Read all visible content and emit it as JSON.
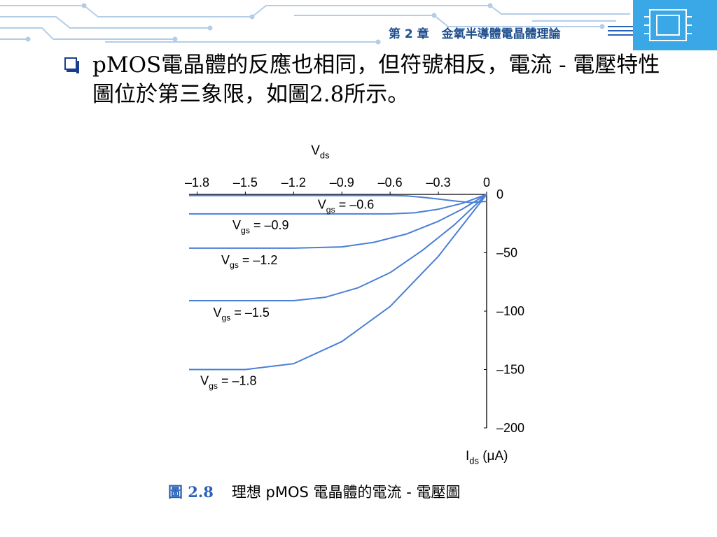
{
  "header": {
    "chapter": "第 2 章",
    "title": "金氧半導體電晶體理論"
  },
  "bullet": {
    "text": "pMOS電晶體的反應也相同，但符號相反，電流 - 電壓特性圖位於第三象限，如圖2.8所示。"
  },
  "caption": {
    "number": "圖 2.8",
    "title": "理想 pMOS 電晶體的電流 - 電壓圖"
  },
  "colors": {
    "curve": "#4a7fd6",
    "header_lines": "#b3cde8",
    "accent": "#1f4f8f",
    "caption_number": "#2a62b8"
  },
  "chart_data": {
    "type": "line",
    "x_axis": {
      "label": "V",
      "label_sub": "ds",
      "ticks": [
        -1.8,
        -1.5,
        -1.2,
        -0.9,
        -0.6,
        -0.3,
        0
      ],
      "tick_labels": [
        "–1.8",
        "–1.5",
        "–1.2",
        "–0.9",
        "–0.6",
        "–0.3",
        "0"
      ],
      "range": [
        -1.85,
        0
      ]
    },
    "y_axis": {
      "label": "I",
      "label_sub": "ds",
      "unit": " (μA)",
      "ticks": [
        0,
        -50,
        -100,
        -150,
        -200
      ],
      "tick_labels": [
        "0",
        "–50",
        "–100",
        "–150",
        "–200"
      ],
      "range": [
        -200,
        0
      ]
    },
    "grid": false,
    "series": [
      {
        "name": "Vgs = –0.6",
        "label_main": "V",
        "label_sub": "gs",
        "label_value": " = –0.6",
        "x": [
          -1.85,
          -0.6,
          -0.5,
          -0.4,
          -0.3,
          -0.2,
          -0.1,
          0
        ],
        "y": [
          -1,
          -1,
          -1.3,
          -2.5,
          -4,
          -5.6,
          -7,
          -6
        ]
      },
      {
        "name": "Vgs = –0.9",
        "label_main": "V",
        "label_sub": "gs",
        "label_value": " = –0.9",
        "x": [
          -1.85,
          -0.6,
          -0.45,
          -0.3,
          -0.15,
          0
        ],
        "y": [
          -16.7,
          -16.7,
          -15.8,
          -12.7,
          -7.6,
          0
        ]
      },
      {
        "name": "Vgs = –1.2",
        "label_main": "V",
        "label_sub": "gs",
        "label_value": " = –1.2",
        "x": [
          -1.85,
          -1.2,
          -0.9,
          -0.7,
          -0.5,
          -0.3,
          -0.15,
          0
        ],
        "y": [
          -46,
          -46,
          -45,
          -41,
          -34,
          -23,
          -12.5,
          0
        ]
      },
      {
        "name": "Vgs = –1.5",
        "label_main": "V",
        "label_sub": "gs",
        "label_value": " = –1.5",
        "x": [
          -1.85,
          -1.2,
          -1.0,
          -0.8,
          -0.6,
          -0.4,
          -0.2,
          0
        ],
        "y": [
          -91,
          -91,
          -88,
          -80,
          -67,
          -48,
          -26,
          0
        ]
      },
      {
        "name": "Vgs = –1.8",
        "label_main": "V",
        "label_sub": "gs",
        "label_value": " = –1.8",
        "x": [
          -1.85,
          -1.5,
          -1.2,
          -0.9,
          -0.6,
          -0.3,
          0
        ],
        "y": [
          -150,
          -150,
          -145,
          -126,
          -96,
          -53,
          0
        ]
      }
    ]
  }
}
